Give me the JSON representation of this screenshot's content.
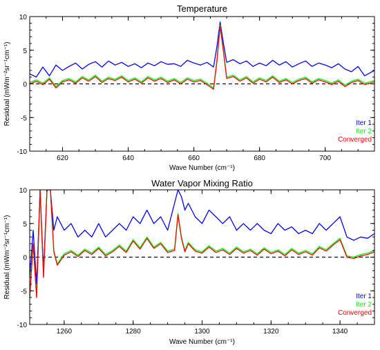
{
  "chart_data": [
    {
      "type": "line",
      "title": "Temperature",
      "xlabel": "Wave Number (cm⁻¹)",
      "ylabel": "Residual (mWm⁻²sr⁻¹cm⁻¹)",
      "xlim": [
        610,
        715
      ],
      "ylim": [
        -10,
        10
      ],
      "xticks": [
        620,
        640,
        660,
        680,
        700
      ],
      "yticks": [
        -10,
        -5,
        0,
        5,
        10
      ],
      "legend_position": "bottom-right",
      "zero_line": "dashed",
      "series": [
        {
          "name": "Iter 1",
          "color": "#0000ff",
          "x": [
            610,
            612,
            614,
            616,
            618,
            620,
            622,
            624,
            626,
            628,
            630,
            632,
            634,
            636,
            638,
            640,
            642,
            644,
            646,
            648,
            650,
            652,
            654,
            656,
            658,
            660,
            662,
            664,
            666,
            667,
            668,
            669,
            670,
            672,
            674,
            676,
            678,
            680,
            682,
            684,
            686,
            688,
            690,
            692,
            694,
            696,
            698,
            700,
            702,
            704,
            706,
            708,
            710,
            712,
            715
          ],
          "y": [
            1.5,
            1.0,
            2.5,
            1.2,
            2.8,
            2.0,
            2.6,
            3.1,
            2.2,
            2.9,
            3.3,
            2.5,
            3.4,
            2.8,
            3.2,
            2.6,
            3.0,
            2.4,
            3.1,
            2.7,
            3.3,
            2.9,
            3.0,
            2.6,
            3.5,
            3.1,
            2.8,
            3.2,
            2.5,
            5.5,
            9.2,
            6.0,
            3.2,
            3.6,
            3.0,
            3.4,
            2.6,
            3.1,
            2.7,
            3.5,
            2.8,
            3.3,
            2.5,
            3.0,
            3.4,
            2.6,
            3.1,
            2.8,
            2.4,
            3.0,
            2.2,
            1.8,
            2.6,
            1.2,
            2.0
          ]
        },
        {
          "name": "Iter 2",
          "color": "#00ff00",
          "x": [
            610,
            612,
            614,
            616,
            618,
            620,
            622,
            624,
            626,
            628,
            630,
            632,
            634,
            636,
            638,
            640,
            642,
            644,
            646,
            648,
            650,
            652,
            654,
            656,
            658,
            660,
            662,
            664,
            666,
            667,
            668,
            669,
            670,
            672,
            674,
            676,
            678,
            680,
            682,
            684,
            686,
            688,
            690,
            692,
            694,
            696,
            698,
            700,
            702,
            704,
            706,
            708,
            710,
            712,
            715
          ],
          "y": [
            0.2,
            0.6,
            0.1,
            0.9,
            -0.4,
            0.5,
            0.8,
            0.3,
            1.1,
            0.6,
            1.3,
            0.4,
            1.0,
            0.7,
            1.2,
            0.5,
            0.9,
            0.3,
            1.1,
            0.6,
            1.0,
            0.4,
            0.8,
            0.2,
            0.9,
            0.5,
            0.7,
            0.1,
            -0.6,
            3.5,
            8.7,
            5.0,
            1.0,
            1.3,
            0.6,
            1.1,
            0.3,
            0.9,
            0.5,
            1.2,
            0.4,
            0.8,
            0.2,
            0.7,
            1.0,
            0.3,
            0.8,
            0.5,
            0.1,
            0.6,
            -0.2,
            0.4,
            0.7,
            0.1,
            0.5
          ]
        },
        {
          "name": "Converged",
          "color": "#ff0000",
          "x": [
            610,
            612,
            614,
            616,
            618,
            620,
            622,
            624,
            626,
            628,
            630,
            632,
            634,
            636,
            638,
            640,
            642,
            644,
            646,
            648,
            650,
            652,
            654,
            656,
            658,
            660,
            662,
            664,
            666,
            667,
            668,
            669,
            670,
            672,
            674,
            676,
            678,
            680,
            682,
            684,
            686,
            688,
            690,
            692,
            694,
            696,
            698,
            700,
            702,
            704,
            706,
            708,
            710,
            712,
            715
          ],
          "y": [
            0.0,
            0.4,
            -0.1,
            0.7,
            -0.6,
            0.3,
            0.6,
            0.1,
            0.9,
            0.4,
            1.1,
            0.2,
            0.8,
            0.5,
            1.0,
            0.3,
            0.7,
            0.1,
            0.9,
            0.4,
            0.8,
            0.2,
            0.6,
            0.0,
            0.7,
            0.3,
            0.5,
            -0.1,
            -0.8,
            3.3,
            8.5,
            4.8,
            0.8,
            1.1,
            0.4,
            0.9,
            0.1,
            0.7,
            0.3,
            1.0,
            0.2,
            0.6,
            0.0,
            0.5,
            0.8,
            0.1,
            0.6,
            0.3,
            -0.1,
            0.4,
            -0.4,
            0.2,
            0.5,
            -0.1,
            0.3
          ]
        }
      ]
    },
    {
      "type": "line",
      "title": "Water Vapor Mixing Ratio",
      "xlabel": "Wave Number (cm⁻¹)",
      "ylabel": "Residual (mWm⁻²sr⁻¹cm⁻¹)",
      "xlim": [
        1250,
        1350
      ],
      "ylim": [
        -10,
        10
      ],
      "xticks": [
        1260,
        1280,
        1300,
        1320,
        1340
      ],
      "yticks": [
        -10,
        -5,
        0,
        5,
        10
      ],
      "legend_position": "bottom-right",
      "zero_line": "dashed",
      "series": [
        {
          "name": "Iter 1",
          "color": "#0000ff",
          "x": [
            1250,
            1251,
            1252,
            1253,
            1254,
            1255,
            1256,
            1257,
            1258,
            1260,
            1262,
            1264,
            1266,
            1268,
            1270,
            1272,
            1274,
            1276,
            1278,
            1280,
            1282,
            1284,
            1286,
            1288,
            1290,
            1292,
            1293,
            1294,
            1295,
            1296,
            1298,
            1300,
            1302,
            1304,
            1306,
            1308,
            1310,
            1312,
            1314,
            1316,
            1318,
            1320,
            1322,
            1324,
            1326,
            1328,
            1330,
            1332,
            1334,
            1336,
            1338,
            1340,
            1342,
            1344,
            1346,
            1348,
            1350
          ],
          "y": [
            -3,
            4,
            -4,
            10,
            -2,
            10,
            10,
            4,
            6,
            4,
            5,
            3,
            4,
            3,
            5,
            3,
            4,
            5,
            4,
            6,
            5,
            7,
            5,
            6,
            4,
            8,
            10,
            9,
            7,
            8,
            6,
            5,
            7,
            6,
            5,
            6,
            4,
            5,
            4,
            5,
            4,
            3.5,
            5,
            4,
            4.5,
            3.5,
            4,
            3.5,
            5,
            4,
            5,
            6,
            3,
            2.5,
            3,
            2.8,
            3.5
          ]
        },
        {
          "name": "Iter 2",
          "color": "#00ff00",
          "x": [
            1250,
            1251,
            1252,
            1253,
            1254,
            1255,
            1256,
            1257,
            1258,
            1260,
            1262,
            1264,
            1266,
            1268,
            1270,
            1272,
            1274,
            1276,
            1278,
            1280,
            1282,
            1284,
            1286,
            1288,
            1290,
            1292,
            1293,
            1294,
            1295,
            1296,
            1298,
            1300,
            1302,
            1304,
            1306,
            1308,
            1310,
            1312,
            1314,
            1316,
            1318,
            1320,
            1322,
            1324,
            1326,
            1328,
            1330,
            1332,
            1334,
            1336,
            1338,
            1340,
            1342,
            1344,
            1346,
            1348,
            1350
          ],
          "y": [
            -6,
            2,
            -6,
            10,
            -3,
            10,
            10,
            1,
            -1,
            0.5,
            1,
            0.3,
            1.2,
            0.6,
            1.5,
            0.4,
            1.0,
            1.8,
            0.9,
            2.6,
            1.4,
            3.0,
            1.5,
            2.2,
            0.9,
            1.2,
            6.5,
            3.0,
            1.0,
            2.2,
            1.1,
            0.8,
            1.7,
            0.9,
            1.3,
            0.6,
            1.5,
            0.8,
            1.2,
            0.5,
            1.4,
            0.7,
            1.1,
            0.4,
            1.3,
            0.6,
            1.0,
            0.5,
            1.6,
            1.1,
            2.0,
            2.8,
            0.2,
            0.0,
            0.4,
            0.6,
            1.0
          ]
        },
        {
          "name": "Converged",
          "color": "#ff0000",
          "x": [
            1250,
            1251,
            1252,
            1253,
            1254,
            1255,
            1256,
            1257,
            1258,
            1260,
            1262,
            1264,
            1266,
            1268,
            1270,
            1272,
            1274,
            1276,
            1278,
            1280,
            1282,
            1284,
            1286,
            1288,
            1290,
            1292,
            1293,
            1294,
            1295,
            1296,
            1298,
            1300,
            1302,
            1304,
            1306,
            1308,
            1310,
            1312,
            1314,
            1316,
            1318,
            1320,
            1322,
            1324,
            1326,
            1328,
            1330,
            1332,
            1334,
            1336,
            1338,
            1340,
            1342,
            1344,
            1346,
            1348,
            1350
          ],
          "y": [
            -6,
            2,
            -6,
            10,
            -3,
            10,
            10,
            0.8,
            -1.2,
            0.3,
            0.8,
            0.1,
            1.0,
            0.4,
            1.3,
            0.2,
            0.8,
            1.6,
            0.7,
            2.4,
            1.2,
            2.8,
            1.3,
            2.0,
            0.7,
            1.0,
            6.3,
            2.8,
            0.8,
            2.0,
            0.9,
            0.6,
            1.5,
            0.7,
            1.1,
            0.4,
            1.3,
            0.6,
            1.0,
            0.3,
            1.2,
            0.5,
            0.9,
            0.2,
            1.1,
            0.4,
            0.8,
            0.3,
            1.4,
            0.9,
            1.8,
            2.6,
            0.0,
            -0.2,
            0.2,
            0.4,
            0.8
          ]
        }
      ]
    }
  ]
}
